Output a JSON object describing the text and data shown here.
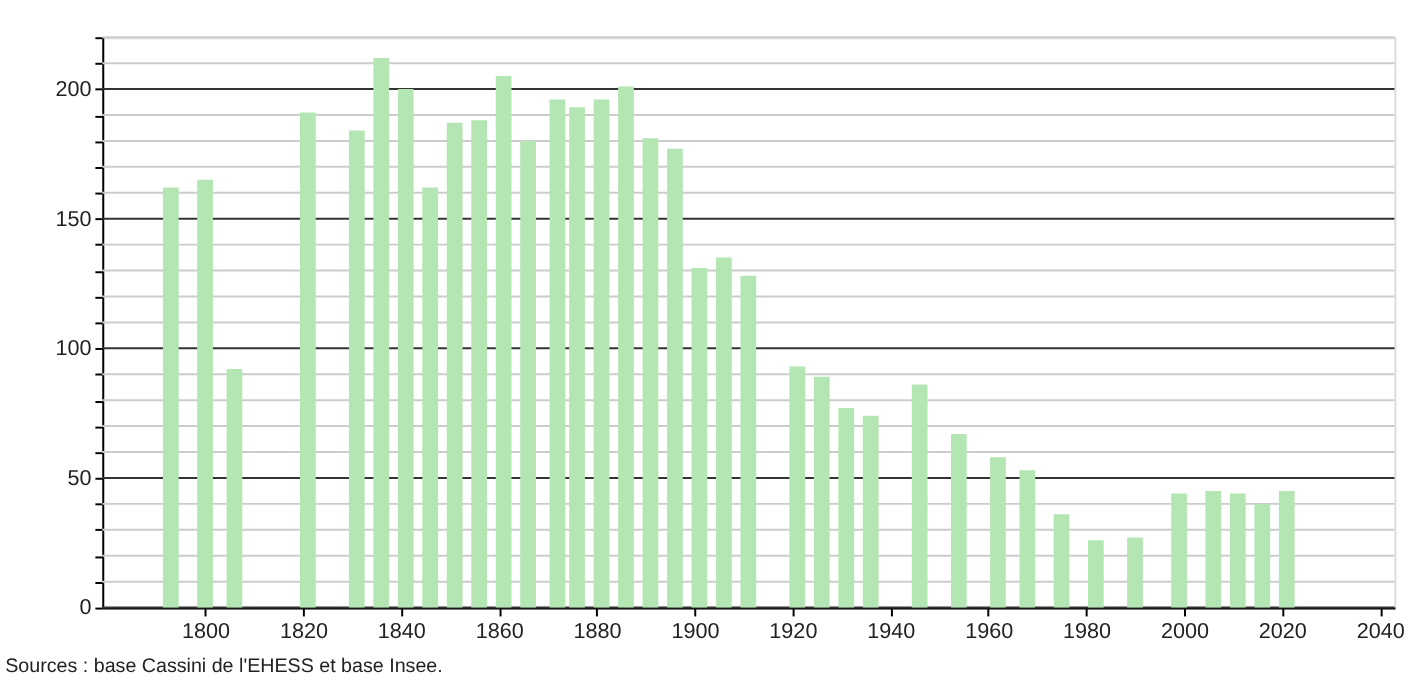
{
  "chart_data": {
    "type": "bar",
    "x": [
      1793,
      1800,
      1806,
      1821,
      1831,
      1836,
      1841,
      1846,
      1851,
      1856,
      1861,
      1866,
      1872,
      1876,
      1881,
      1886,
      1891,
      1896,
      1901,
      1906,
      1911,
      1921,
      1926,
      1931,
      1936,
      1946,
      1954,
      1962,
      1968,
      1975,
      1982,
      1990,
      1999,
      2006,
      2011,
      2016,
      2021
    ],
    "values": [
      162,
      165,
      92,
      191,
      184,
      212,
      200,
      162,
      187,
      188,
      205,
      180,
      196,
      193,
      196,
      201,
      181,
      177,
      131,
      135,
      128,
      93,
      89,
      77,
      74,
      86,
      67,
      58,
      53,
      36,
      26,
      27,
      44,
      45,
      44,
      40,
      45
    ],
    "color": "#b3e6b3",
    "xlim": [
      1779,
      2043
    ],
    "xticks": [
      1800,
      1820,
      1840,
      1860,
      1880,
      1900,
      1920,
      1940,
      1960,
      1980,
      2000,
      2020,
      2040
    ],
    "ylim": [
      0,
      220
    ],
    "yticks": [
      0,
      {
        "value": 10,
        "label": null
      },
      {
        "value": 20,
        "label": null
      },
      {
        "value": 30,
        "label": null
      },
      {
        "value": 40,
        "label": null
      },
      50,
      {
        "value": 60,
        "label": null
      },
      {
        "value": 70,
        "label": null
      },
      {
        "value": 80,
        "label": null
      },
      {
        "value": 90,
        "label": null
      },
      100,
      {
        "value": 110,
        "label": null
      },
      {
        "value": 120,
        "label": null
      },
      {
        "value": 130,
        "label": null
      },
      {
        "value": 140,
        "label": null
      },
      150,
      {
        "value": 160,
        "label": null
      },
      {
        "value": 170,
        "label": null
      },
      {
        "value": 180,
        "label": null
      },
      {
        "value": 190,
        "label": null
      },
      200,
      {
        "value": 210,
        "label": null
      },
      {
        "value": 220,
        "label": null
      }
    ],
    "grid": "y",
    "annotations": [
      "Sources : base Cassini de l'EHESS et base Insee."
    ]
  }
}
